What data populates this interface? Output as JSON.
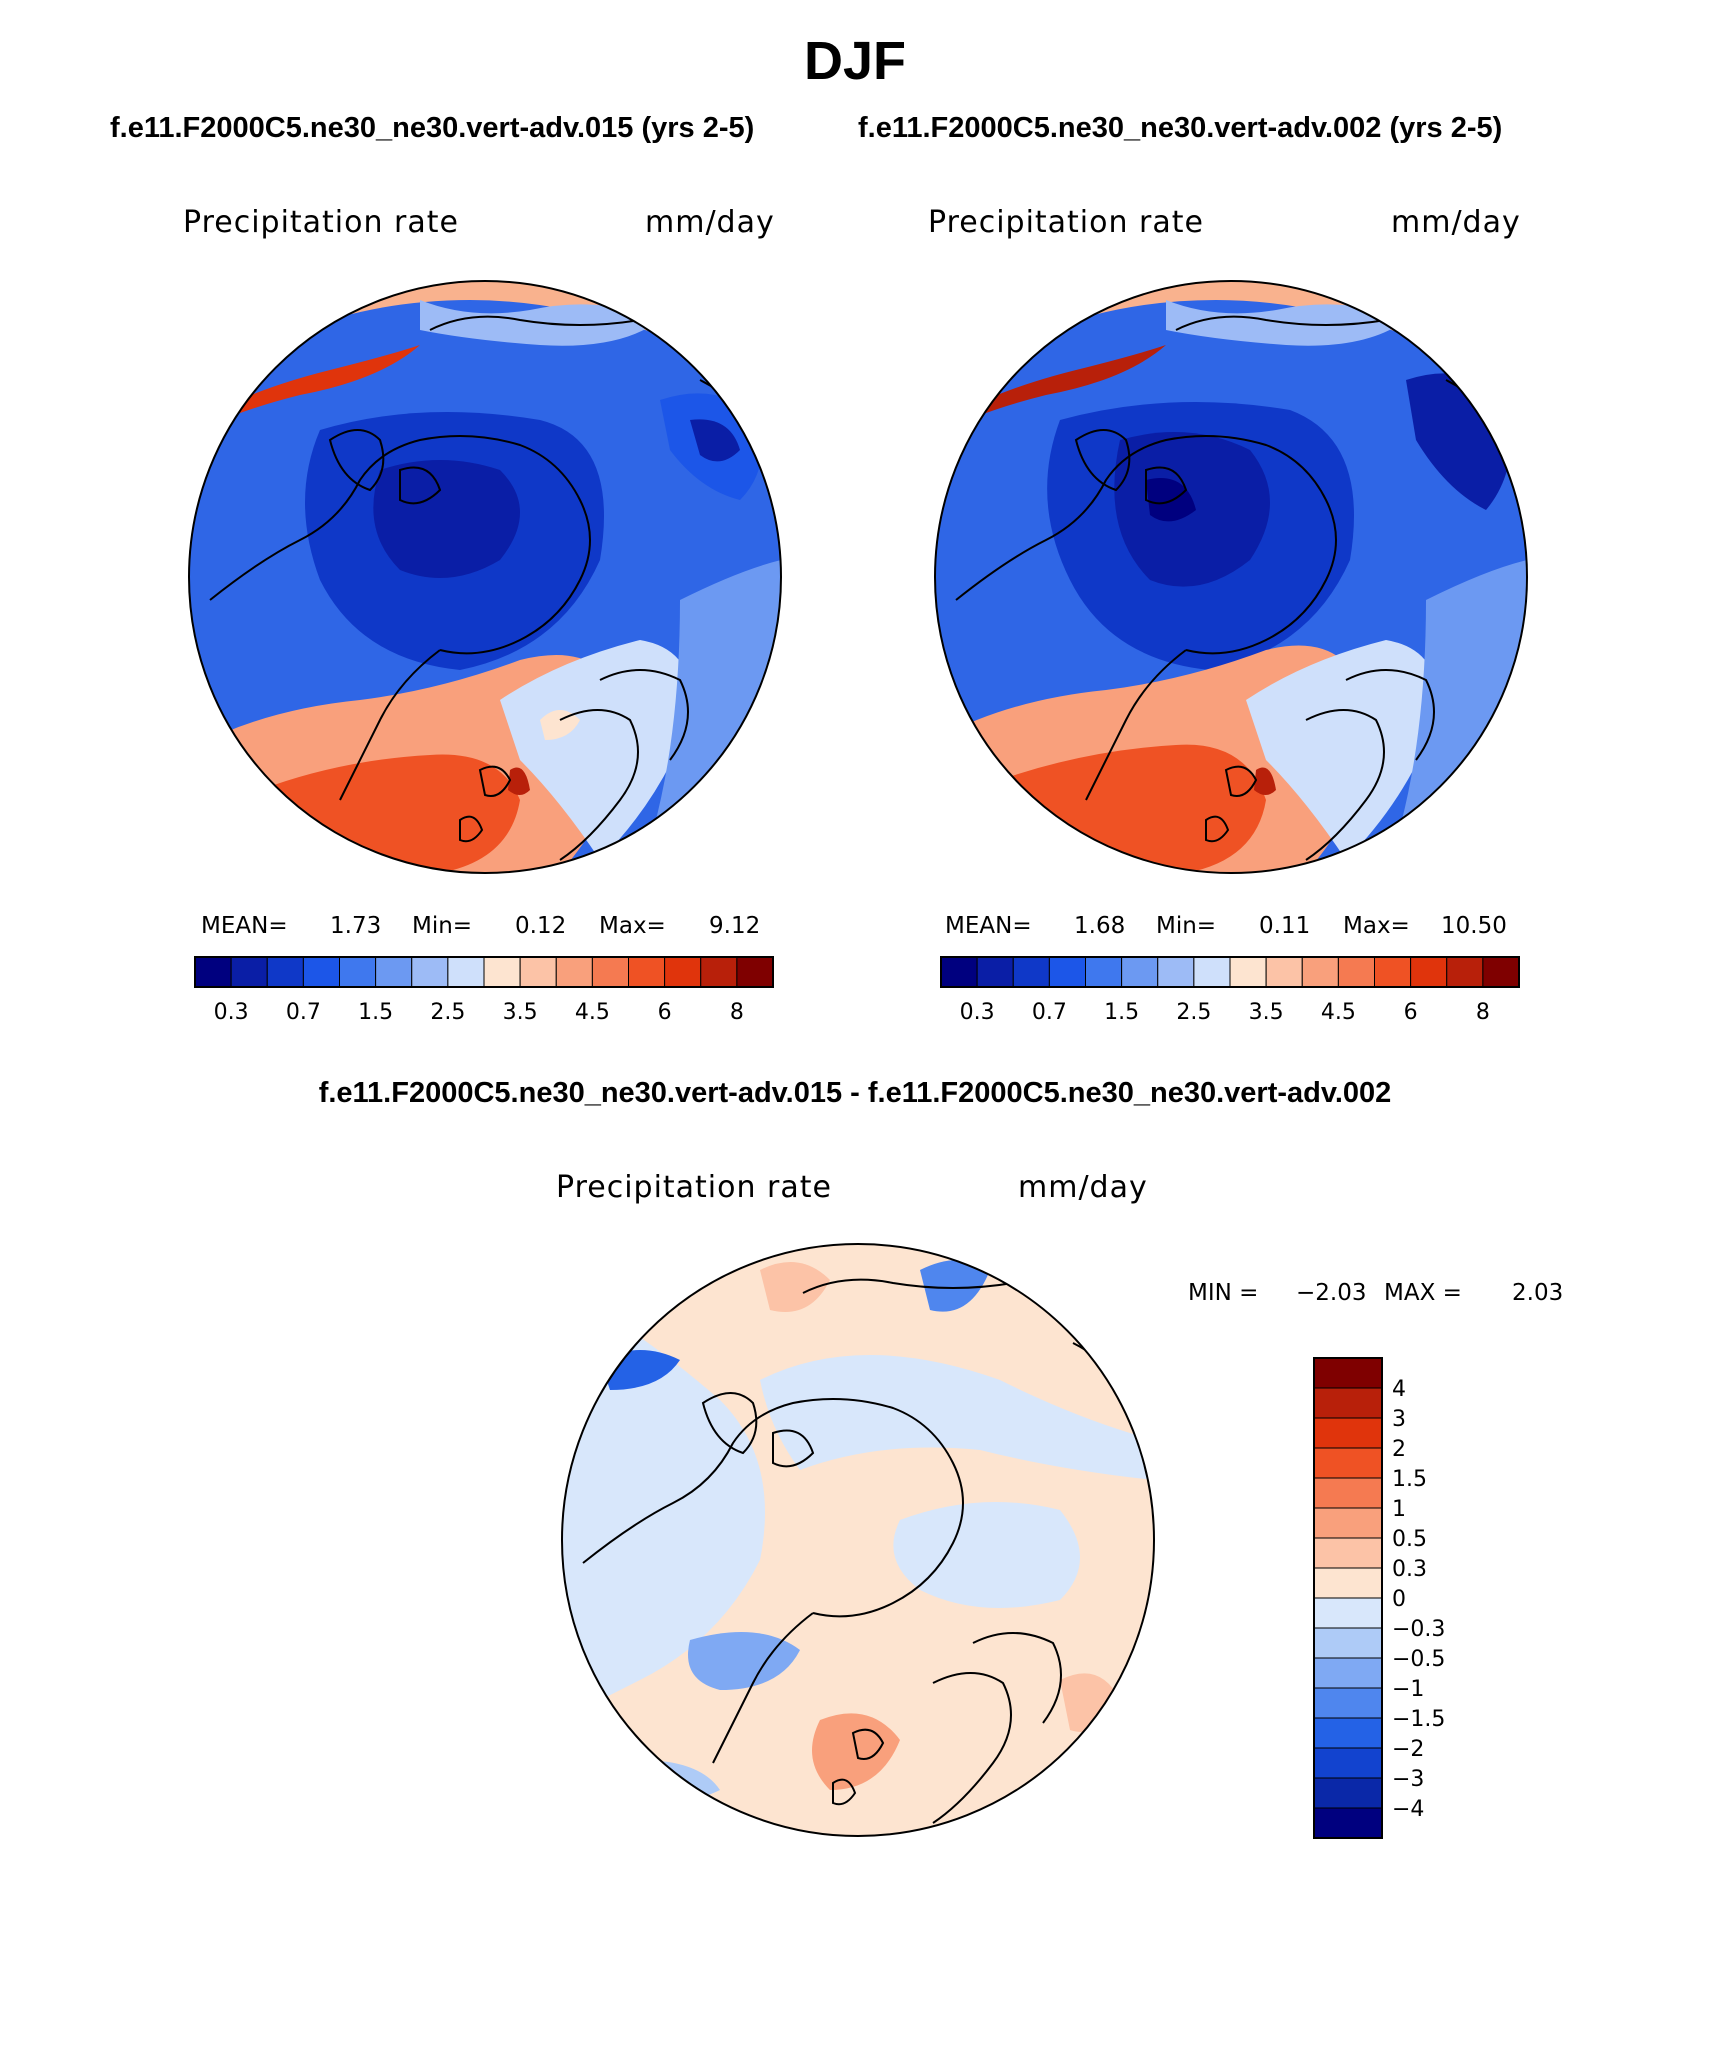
{
  "figure": {
    "season": "DJF",
    "case_a_title": "f.e11.F2000C5.ne30_ne30.vert-adv.015 (yrs 2-5)",
    "case_b_title": "f.e11.F2000C5.ne30_ne30.vert-adv.002 (yrs 2-5)",
    "diff_title": "f.e11.F2000C5.ne30_ne30.vert-adv.015 - f.e11.F2000C5.ne30_ne30.vert-adv.002"
  },
  "chart_data": [
    {
      "type": "heatmap",
      "projection": "north polar stereographic",
      "variable": "Precipitation rate",
      "units": "mm/day",
      "stats": {
        "mean_label": "MEAN=",
        "mean": "1.73",
        "min_label": "Min=",
        "min": "0.12",
        "max_label": "Max=",
        "max": "9.12"
      },
      "contour_levels": [
        0.2,
        0.3,
        0.5,
        0.7,
        1,
        1.5,
        2,
        2.5,
        3,
        3.5,
        4,
        4.5,
        5,
        6,
        7,
        8
      ],
      "colorbar_tick_labels": [
        "0.3",
        "0.7",
        "1.5",
        "2.5",
        "3.5",
        "4.5",
        "6",
        "8"
      ],
      "colorbar_colors": [
        "#00007f",
        "#0a1ea6",
        "#0f38c8",
        "#1c56e8",
        "#3f78ee",
        "#6c99f2",
        "#9dbbf6",
        "#cfe0fb",
        "#fde4d0",
        "#fcc3a7",
        "#f9a07c",
        "#f57a51",
        "#ef5224",
        "#e0340c",
        "#b8200a",
        "#7f0000"
      ]
    },
    {
      "type": "heatmap",
      "projection": "north polar stereographic",
      "variable": "Precipitation rate",
      "units": "mm/day",
      "stats": {
        "mean_label": "MEAN=",
        "mean": "1.68",
        "min_label": "Min=",
        "min": "0.11",
        "max_label": "Max=",
        "max": "10.50"
      },
      "contour_levels": [
        0.2,
        0.3,
        0.5,
        0.7,
        1,
        1.5,
        2,
        2.5,
        3,
        3.5,
        4,
        4.5,
        5,
        6,
        7,
        8
      ],
      "colorbar_tick_labels": [
        "0.3",
        "0.7",
        "1.5",
        "2.5",
        "3.5",
        "4.5",
        "6",
        "8"
      ],
      "colorbar_colors": [
        "#00007f",
        "#0a1ea6",
        "#0f38c8",
        "#1c56e8",
        "#3f78ee",
        "#6c99f2",
        "#9dbbf6",
        "#cfe0fb",
        "#fde4d0",
        "#fcc3a7",
        "#f9a07c",
        "#f57a51",
        "#ef5224",
        "#e0340c",
        "#b8200a",
        "#7f0000"
      ]
    },
    {
      "type": "heatmap",
      "projection": "north polar stereographic",
      "variable": "Precipitation rate",
      "units": "mm/day",
      "stats": {
        "min_label": "MIN =",
        "min": "−2.03",
        "max_label": "MAX =",
        "max": "2.03"
      },
      "contour_levels": [
        -4,
        -3,
        -2,
        -1.5,
        -1,
        -0.5,
        -0.3,
        0,
        0.3,
        0.5,
        1,
        1.5,
        2,
        3,
        4
      ],
      "colorbar_tick_labels": [
        "4",
        "3",
        "2",
        "1.5",
        "1",
        "0.5",
        "0.3",
        "0",
        "−0.3",
        "−0.5",
        "−1",
        "−1.5",
        "−2",
        "−3",
        "−4"
      ],
      "colorbar_colors_top_to_bottom": [
        "#7f0000",
        "#b8200a",
        "#e0340c",
        "#ef5224",
        "#f57a51",
        "#f9a07c",
        "#fcc3a7",
        "#fde4d0",
        "#d8e7fb",
        "#aecbf7",
        "#7fa9f3",
        "#4f86ee",
        "#2462e6",
        "#1243cf",
        "#0a28a8",
        "#00007f"
      ]
    }
  ]
}
